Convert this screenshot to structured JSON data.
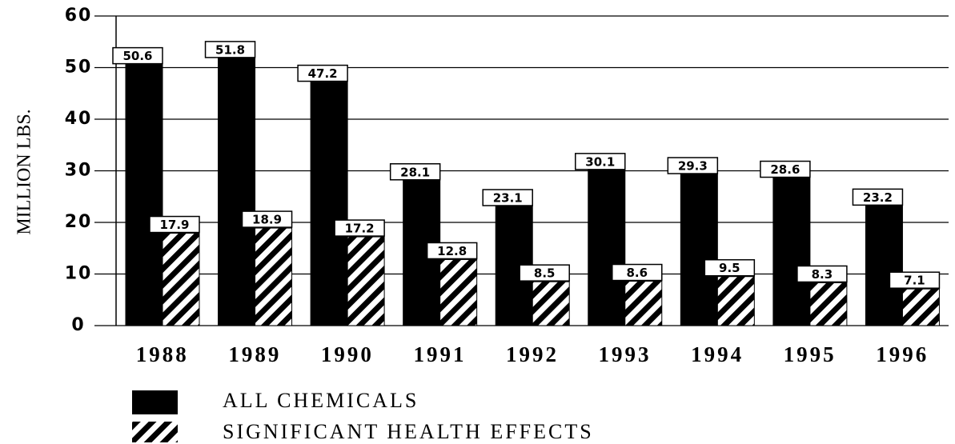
{
  "chart_data": {
    "type": "bar",
    "y_label": "MILLION LBS.",
    "categories": [
      "1988",
      "1989",
      "1990",
      "1991",
      "1992",
      "1993",
      "1994",
      "1995",
      "1996"
    ],
    "series": [
      {
        "name": "ALL CHEMICALS",
        "color": "#000000",
        "hatch": false,
        "values": [
          50.6,
          51.8,
          47.2,
          28.1,
          23.1,
          30.1,
          29.3,
          28.6,
          23.2
        ]
      },
      {
        "name": "SIGNIFICANT HEALTH EFFECTS",
        "color": "#000000",
        "hatch": true,
        "values": [
          17.9,
          18.9,
          17.2,
          12.8,
          8.5,
          8.6,
          9.5,
          8.3,
          7.1
        ]
      }
    ],
    "ylim": [
      0,
      60
    ],
    "yticks": [
      0,
      10,
      20,
      30,
      40,
      50,
      60
    ],
    "grid": true
  }
}
